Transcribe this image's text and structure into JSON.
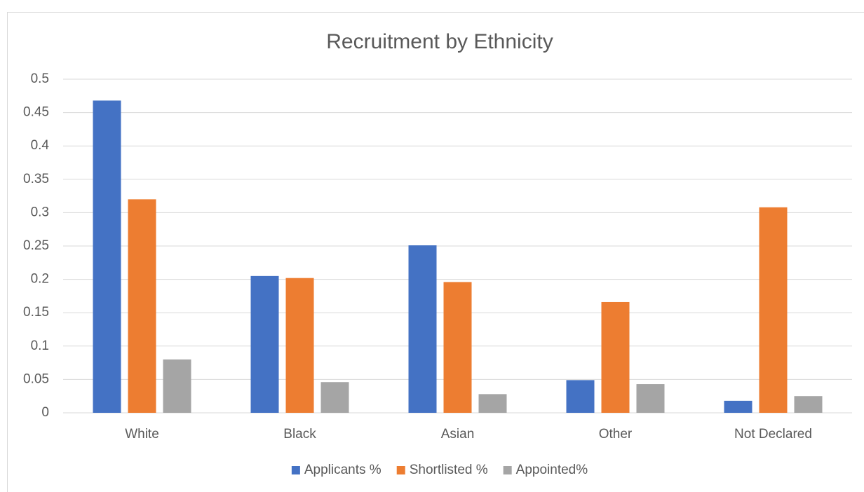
{
  "chart_data": {
    "type": "bar",
    "title": "Recruitment by Ethnicity",
    "categories": [
      "White",
      "Black",
      "Asian",
      "Other",
      "Not Declared"
    ],
    "series": [
      {
        "name": "Applicants %",
        "color": "#4472c4",
        "values": [
          0.468,
          0.205,
          0.251,
          0.049,
          0.018
        ]
      },
      {
        "name": "Shortlisted %",
        "color": "#ed7d31",
        "values": [
          0.32,
          0.202,
          0.196,
          0.166,
          0.308
        ]
      },
      {
        "name": "Appointed%",
        "color": "#a5a5a5",
        "values": [
          0.08,
          0.046,
          0.028,
          0.043,
          0.025
        ]
      }
    ],
    "ylim": [
      0,
      0.5
    ],
    "yticks": [
      0,
      0.05,
      0.1,
      0.15,
      0.2,
      0.25,
      0.3,
      0.35,
      0.4,
      0.45,
      0.5
    ],
    "grid": true,
    "legend": "bottom"
  }
}
